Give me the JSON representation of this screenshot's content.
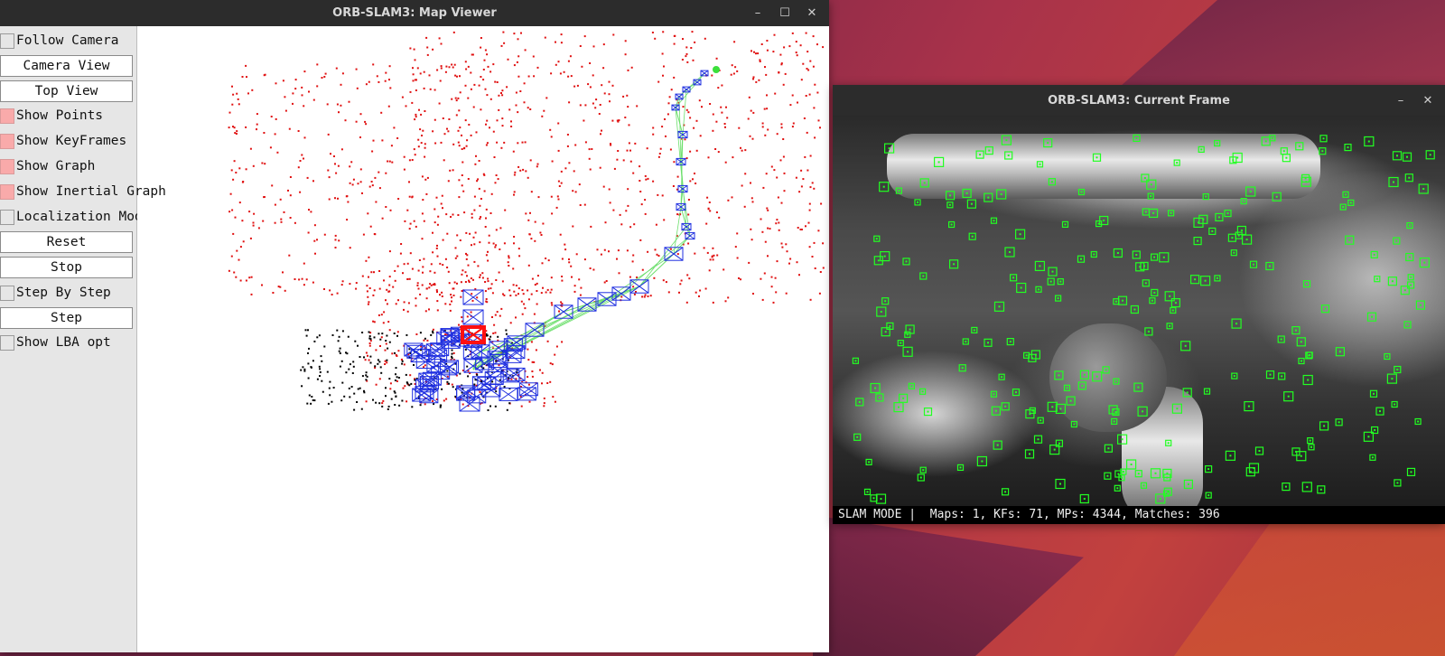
{
  "map_viewer": {
    "title": "ORB-SLAM3: Map Viewer",
    "controls": {
      "follow_camera": {
        "label": "Follow Camera",
        "checked": false
      },
      "camera_view": "Camera View",
      "top_view": "Top View",
      "show_points": {
        "label": "Show Points",
        "checked": true
      },
      "show_keyframes": {
        "label": "Show KeyFrames",
        "checked": true
      },
      "show_graph": {
        "label": "Show Graph",
        "checked": true
      },
      "show_inertial_graph": {
        "label": "Show Inertial Graph",
        "checked": true
      },
      "localization_mode": {
        "label": "Localization Mode",
        "checked": false
      },
      "reset": "Reset",
      "stop": "Stop",
      "step_by_step": {
        "label": "Step By Step",
        "checked": false
      },
      "step": "Step",
      "show_lba_opt": {
        "label": "Show LBA opt",
        "checked": false
      }
    }
  },
  "current_frame": {
    "title": "ORB-SLAM3: Current Frame",
    "status": "SLAM MODE |  Maps: 1, KFs: 71, MPs: 4344, Matches: 396"
  },
  "window_controls": {
    "minimize": "–",
    "maximize": "☐",
    "close": "✕"
  },
  "colors": {
    "map_point": "#e01010",
    "local_point": "#000000",
    "keyframe": "#1f2fe0",
    "graph_edge": "#6ddf6d",
    "current_camera": "#ff1010",
    "feature_box": "#22ff22"
  }
}
